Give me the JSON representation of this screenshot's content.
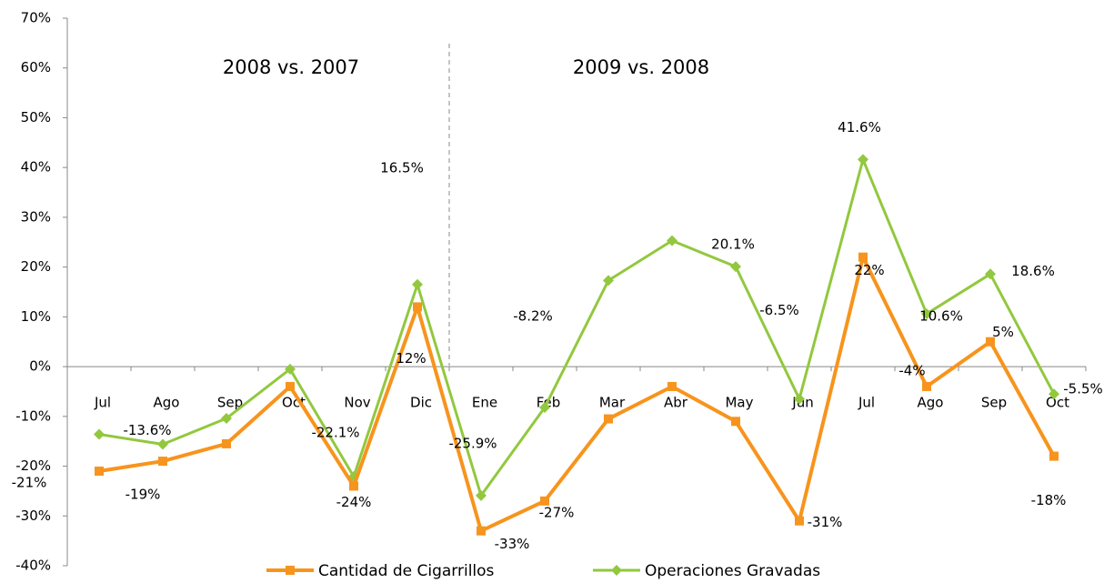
{
  "chart_data": {
    "type": "line",
    "categories": [
      "Jul",
      "Ago",
      "Sep",
      "Oct",
      "Nov",
      "Dic",
      "Ene",
      "Feb",
      "Mar",
      "Abr",
      "May",
      "Jun",
      "Jul",
      "Ago",
      "Sep",
      "Oct"
    ],
    "series": [
      {
        "name": "Cantidad de Cigarrillos",
        "color": "#f7941d",
        "values": [
          -21,
          -19,
          -15.5,
          -4,
          -24,
          12,
          -33,
          -27,
          -10.5,
          -4,
          -11,
          -31,
          22,
          -4,
          5,
          -18
        ],
        "value_labels": [
          "-21%",
          "-19%",
          null,
          null,
          "-24%",
          "12%",
          "-33%",
          "-27%",
          null,
          null,
          null,
          "-31%",
          "22%",
          "-4%",
          "5%",
          "-18%"
        ]
      },
      {
        "name": "Operaciones Gravadas",
        "color": "#92c83e",
        "values": [
          -13.6,
          -15.6,
          -10.4,
          -0.5,
          -22.1,
          16.5,
          -25.9,
          -8.2,
          17.3,
          25.3,
          20.1,
          -6.5,
          41.6,
          10.6,
          18.6,
          -5.5
        ],
        "value_labels": [
          "-13.6%",
          null,
          null,
          null,
          "-22.1%",
          "16.5%",
          "-25.9%",
          "-8.2%",
          null,
          null,
          "20.1%",
          "-6.5%",
          "41.6%",
          "10.6%",
          "18.6%",
          "-5.5%"
        ]
      }
    ],
    "ylim": [
      -40,
      70
    ],
    "yticks": [
      {
        "value": -40,
        "label": "-40%"
      },
      {
        "value": -30,
        "label": "-30%"
      },
      {
        "value": -20,
        "label": "-20%"
      },
      {
        "value": -10,
        "label": "-10%"
      },
      {
        "value": 0,
        "label": "0%"
      },
      {
        "value": 10,
        "label": "10%"
      },
      {
        "value": 20,
        "label": "20%"
      },
      {
        "value": 30,
        "label": "30%"
      },
      {
        "value": 40,
        "label": "40%"
      },
      {
        "value": 50,
        "label": "50%"
      },
      {
        "value": 60,
        "label": "60%"
      },
      {
        "value": 70,
        "label": "70%"
      }
    ],
    "annotations": [
      "2008 vs. 2007",
      "2009 vs. 2008"
    ],
    "legend": "bottom"
  }
}
